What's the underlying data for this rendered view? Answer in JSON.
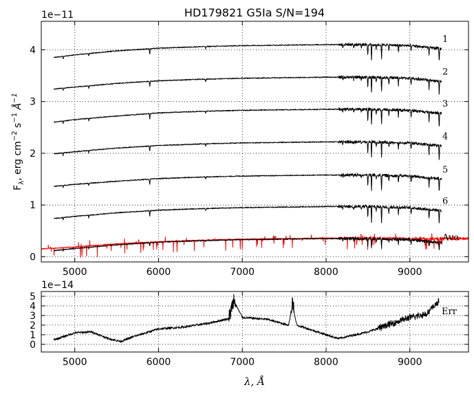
{
  "chart_data": [
    {
      "type": "line",
      "title": "HD179821  G5Ia  S/N=194",
      "ylabel": "F_λ, erg cm^-2 s^-1 Å^-1",
      "offset_label": "1e−11",
      "xlim": [
        4600,
        9700
      ],
      "ylim": [
        -0.1,
        4.55
      ],
      "x_ticks": [
        5000,
        6000,
        7000,
        8000,
        9000
      ],
      "y_ticks": [
        0,
        1,
        2,
        3,
        4
      ],
      "grid": true,
      "series": [
        {
          "name": "1",
          "color": "#000000",
          "x": [
            4750,
            5000,
            5500,
            6000,
            6500,
            7000,
            7500,
            8000,
            8500,
            9000,
            9380
          ],
          "y": [
            3.85,
            3.9,
            3.98,
            4.03,
            4.06,
            4.08,
            4.09,
            4.1,
            4.1,
            4.08,
            4.02
          ]
        },
        {
          "name": "2",
          "color": "#000000",
          "x": [
            4750,
            5000,
            5500,
            6000,
            6500,
            7000,
            7500,
            8000,
            8500,
            9000,
            9380
          ],
          "y": [
            3.24,
            3.28,
            3.35,
            3.4,
            3.43,
            3.45,
            3.46,
            3.47,
            3.47,
            3.45,
            3.39
          ]
        },
        {
          "name": "3",
          "color": "#000000",
          "x": [
            4750,
            5000,
            5500,
            6000,
            6500,
            7000,
            7500,
            8000,
            8500,
            9000,
            9380
          ],
          "y": [
            2.6,
            2.65,
            2.72,
            2.78,
            2.81,
            2.83,
            2.84,
            2.85,
            2.85,
            2.83,
            2.77
          ]
        },
        {
          "name": "4",
          "color": "#000000",
          "x": [
            4750,
            5000,
            5500,
            6000,
            6500,
            7000,
            7500,
            8000,
            8500,
            9000,
            9380
          ],
          "y": [
            1.99,
            2.03,
            2.1,
            2.15,
            2.18,
            2.2,
            2.21,
            2.22,
            2.22,
            2.2,
            2.14
          ]
        },
        {
          "name": "5",
          "color": "#000000",
          "x": [
            4750,
            5000,
            5500,
            6000,
            6500,
            7000,
            7500,
            8000,
            8500,
            9000,
            9380
          ],
          "y": [
            1.36,
            1.4,
            1.46,
            1.51,
            1.54,
            1.56,
            1.57,
            1.58,
            1.58,
            1.56,
            1.5
          ]
        },
        {
          "name": "6",
          "color": "#000000",
          "x": [
            4750,
            5000,
            5500,
            6000,
            6500,
            7000,
            7500,
            8000,
            8500,
            9000,
            9380
          ],
          "y": [
            0.74,
            0.78,
            0.85,
            0.9,
            0.93,
            0.95,
            0.96,
            0.97,
            0.97,
            0.95,
            0.89
          ]
        },
        {
          "name": "Ave",
          "color": "#000000",
          "x": [
            4750,
            5000,
            5500,
            6000,
            6500,
            7000,
            7500,
            8000,
            8500,
            9000,
            9380
          ],
          "y": [
            0.12,
            0.16,
            0.23,
            0.28,
            0.31,
            0.33,
            0.34,
            0.35,
            0.35,
            0.33,
            0.27
          ]
        },
        {
          "name": "",
          "color": "#ff0000",
          "x": [
            4600,
            5000,
            5500,
            6000,
            6500,
            7000,
            7500,
            8000,
            8500,
            9000,
            9500,
            9700
          ],
          "y": [
            0.15,
            0.19,
            0.25,
            0.29,
            0.32,
            0.34,
            0.35,
            0.36,
            0.36,
            0.35,
            0.35,
            0.35
          ]
        }
      ],
      "annotations": [
        "1",
        "2",
        "3",
        "4",
        "5",
        "6",
        "Ave"
      ]
    },
    {
      "type": "line",
      "xlabel": "λ, Å",
      "offset_label": "1e−14",
      "xlim": [
        4600,
        9700
      ],
      "ylim": [
        -0.8,
        5.5
      ],
      "x_ticks": [
        5000,
        6000,
        7000,
        8000,
        9000
      ],
      "y_ticks": [
        0,
        1,
        2,
        3,
        4,
        5
      ],
      "grid": true,
      "series": [
        {
          "name": "Err",
          "color": "#000000",
          "x": [
            4750,
            4800,
            5000,
            5200,
            5400,
            5550,
            5700,
            6000,
            6300,
            6600,
            6850,
            6900,
            7000,
            7300,
            7550,
            7600,
            7650,
            8000,
            8150,
            8300,
            8500,
            8800,
            9000,
            9200,
            9350
          ],
          "y": [
            0.5,
            0.6,
            1.2,
            1.3,
            0.6,
            0.3,
            0.8,
            1.6,
            1.8,
            2.2,
            2.7,
            4.5,
            2.8,
            2.6,
            2.0,
            4.0,
            2.0,
            1.0,
            0.6,
            0.9,
            1.3,
            2.2,
            2.8,
            3.2,
            4.5
          ]
        }
      ],
      "annotations": [
        "Err"
      ]
    }
  ]
}
